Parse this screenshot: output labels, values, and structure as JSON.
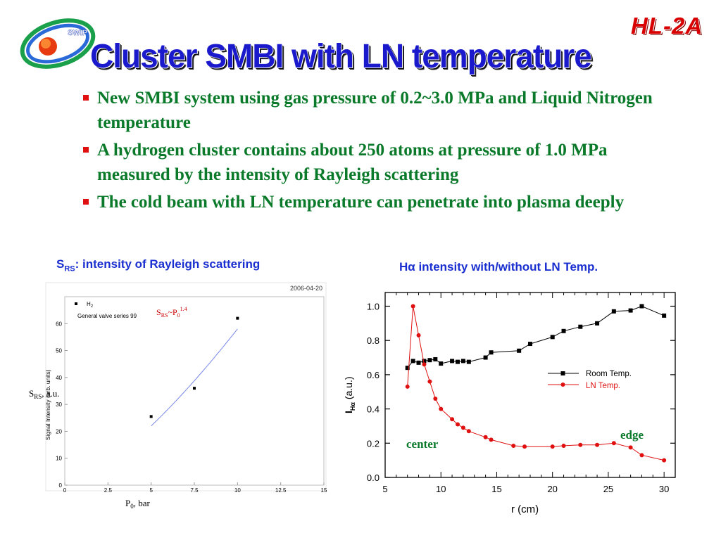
{
  "slide": {
    "title": "Cluster SMBI with LN temperature",
    "corner_logo": "HL-2A",
    "logo_text": "SWIP",
    "bullets": [
      "New SMBI system using gas pressure of 0.2~3.0 MPa  and Liquid Nitrogen temperature",
      "A hydrogen cluster contains about 250 atoms at pressure of 1.0 MPa measured by the intensity of Rayleigh scattering",
      "The cold beam with LN temperature can penetrate into plasma deeply"
    ],
    "left_caption": {
      "sym": "S",
      "sub": "RS",
      "text": ": intensity of Rayleigh scattering"
    },
    "right_caption": "Hα intensity with/without LN Temp.",
    "colors": {
      "title": "#1a1acc",
      "bullet_text": "#0a7a2a",
      "bullet_marker": "#e01010",
      "caption": "#1a2fd0",
      "corner_logo": "#d80000"
    }
  },
  "chart_data": [
    {
      "type": "scatter",
      "date_stamp": "2006-04-20",
      "legend": [
        "H2",
        "General valve series 99"
      ],
      "fit_label": "S_RS~P_0^1.4",
      "overlay_ylabel": "S_RS, a.u.",
      "overlay_xlabel": "P_0, bar",
      "ylabel_original": "Signal Intensity (arb. units)",
      "xlim": [
        0,
        15
      ],
      "ylim": [
        0,
        70
      ],
      "xticks": [
        "0",
        "2.5",
        "5",
        "7.5",
        "10",
        "12.5",
        "15"
      ],
      "yticks": [
        "0",
        "10",
        "20",
        "30",
        "40",
        "50",
        "60"
      ],
      "points": [
        {
          "x": 5,
          "y": 25.5
        },
        {
          "x": 7.5,
          "y": 36
        },
        {
          "x": 10,
          "y": 62
        }
      ],
      "fit": {
        "form": "a*x^1.4",
        "a": 2.31,
        "x_range": [
          5,
          10
        ]
      },
      "colors": {
        "fit": "#7a88e8",
        "points": "#000000",
        "fit_label": "#cc0000"
      }
    },
    {
      "type": "line",
      "xlabel": "r (cm)",
      "ylabel": "I_Hα (a.u.)",
      "xlim": [
        5,
        31
      ],
      "ylim": [
        0,
        1.08
      ],
      "xticks": [
        5,
        10,
        15,
        20,
        25,
        30
      ],
      "yticks": [
        "0.0",
        "0.2",
        "0.4",
        "0.6",
        "0.8",
        "1.0"
      ],
      "legend_position": "right",
      "annotations": [
        "center",
        "edge"
      ],
      "series": [
        {
          "name": "Room Temp.",
          "color": "#000000",
          "marker": "square",
          "points": [
            [
              7.0,
              0.64
            ],
            [
              7.5,
              0.68
            ],
            [
              8.0,
              0.67
            ],
            [
              8.5,
              0.68
            ],
            [
              9.0,
              0.685
            ],
            [
              9.5,
              0.69
            ],
            [
              10.0,
              0.665
            ],
            [
              11.0,
              0.68
            ],
            [
              11.5,
              0.675
            ],
            [
              12.0,
              0.68
            ],
            [
              12.5,
              0.675
            ],
            [
              14.0,
              0.7
            ],
            [
              14.5,
              0.73
            ],
            [
              17.0,
              0.74
            ],
            [
              18.0,
              0.78
            ],
            [
              20.0,
              0.82
            ],
            [
              21.0,
              0.855
            ],
            [
              22.5,
              0.88
            ],
            [
              24.0,
              0.9
            ],
            [
              25.5,
              0.97
            ],
            [
              27.0,
              0.975
            ],
            [
              28.0,
              1.0
            ],
            [
              30.0,
              0.945
            ]
          ]
        },
        {
          "name": "LN Temp.",
          "color": "#e01010",
          "marker": "circle",
          "points": [
            [
              7.0,
              0.53
            ],
            [
              7.5,
              1.0
            ],
            [
              8.0,
              0.83
            ],
            [
              8.5,
              0.66
            ],
            [
              9.0,
              0.56
            ],
            [
              9.5,
              0.46
            ],
            [
              10.0,
              0.4
            ],
            [
              11.0,
              0.34
            ],
            [
              11.5,
              0.31
            ],
            [
              12.0,
              0.29
            ],
            [
              12.5,
              0.27
            ],
            [
              14.0,
              0.235
            ],
            [
              14.5,
              0.22
            ],
            [
              16.5,
              0.185
            ],
            [
              17.5,
              0.18
            ],
            [
              20.0,
              0.18
            ],
            [
              21.0,
              0.185
            ],
            [
              22.5,
              0.19
            ],
            [
              24.0,
              0.19
            ],
            [
              25.5,
              0.2
            ],
            [
              27.0,
              0.175
            ],
            [
              28.0,
              0.13
            ],
            [
              30.0,
              0.1
            ]
          ]
        }
      ]
    }
  ]
}
